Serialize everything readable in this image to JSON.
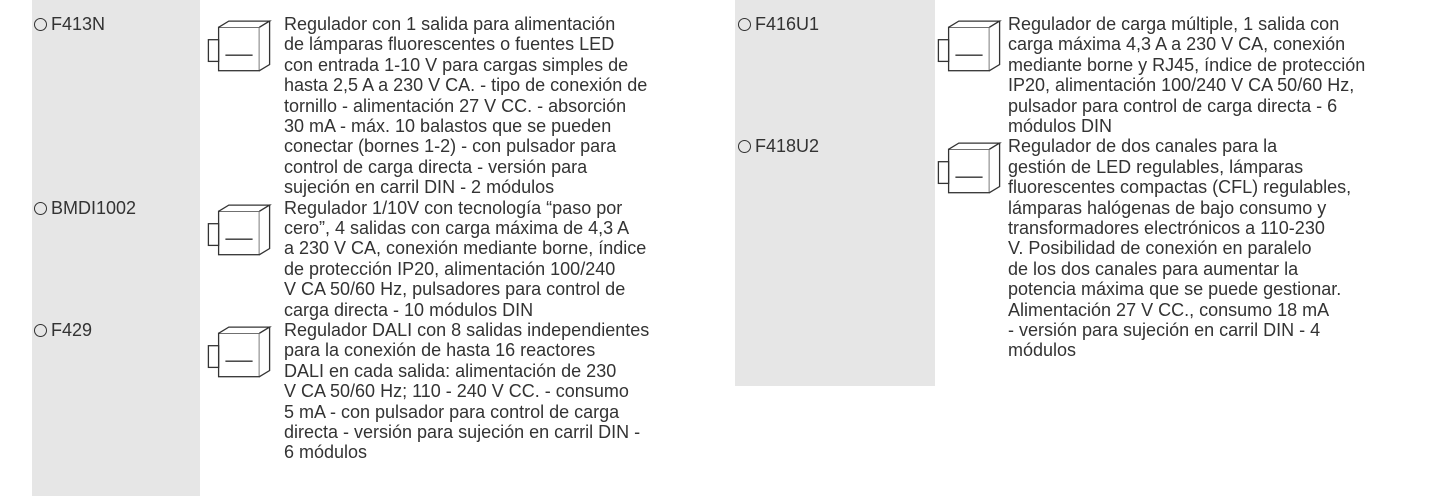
{
  "left": [
    {
      "code": "F413N",
      "lines": [
        "Regulador con 1 salida para alimentación",
        "de lámparas fluorescentes o fuentes LED",
        "con entrada 1-10 V para cargas simples de",
        "hasta 2,5 A a 230 V CA. - tipo de conexión de",
        "tornillo - alimentación 27 V CC. - absorción",
        "30 mA - máx. 10 balastos que se pueden",
        "conectar (bornes 1-2) - con pulsador para",
        "control de carga directa - versión para",
        "sujeción en carril DIN - 2 módulos"
      ]
    },
    {
      "code": "BMDI1002",
      "lines": [
        "Regulador 1/10V con tecnología “paso por",
        "cero”, 4 salidas con carga máxima de 4,3 A",
        "a 230 V CA, conexión mediante borne, índice",
        "de protección IP20, alimentación 100/240",
        "V CA 50/60 Hz, pulsadores para control de",
        "carga directa - 10 módulos DIN"
      ]
    },
    {
      "code": "F429",
      "lines": [
        "Regulador DALI con 8 salidas independientes",
        "para la conexión de hasta 16 reactores",
        "DALI en cada salida: alimentación de 230",
        "V CA 50/60 Hz; 110 - 240 V CC. - consumo",
        "5 mA - con pulsador para control de carga",
        "directa - versión para sujeción en carril DIN -",
        "6 módulos"
      ]
    }
  ],
  "right": [
    {
      "code": "F416U1",
      "lines": [
        "Regulador de carga múltiple, 1 salida con",
        "carga máxima 4,3 A a 230 V CA, conexión",
        "mediante borne y RJ45, índice de protección",
        "IP20, alimentación 100/240 V CA 50/60 Hz,",
        "pulsador para control de carga directa - 6",
        "módulos DIN"
      ]
    },
    {
      "code": "F418U2",
      "lines": [
        "Regulador de dos canales para la",
        "gestión de LED regulables, lámparas",
        "fluorescentes compactas (CFL) regulables,",
        "lámparas halógenas de bajo consumo y",
        "transformadores electrónicos a 110-230",
        "V. Posibilidad de conexión en paralelo",
        "de los dos canales para aumentar la",
        "potencia máxima que se puede gestionar.",
        "Alimentación 27 V CC., consumo 18 mA",
        "- versión para sujeción en carril DIN - 4",
        "módulos"
      ]
    }
  ]
}
